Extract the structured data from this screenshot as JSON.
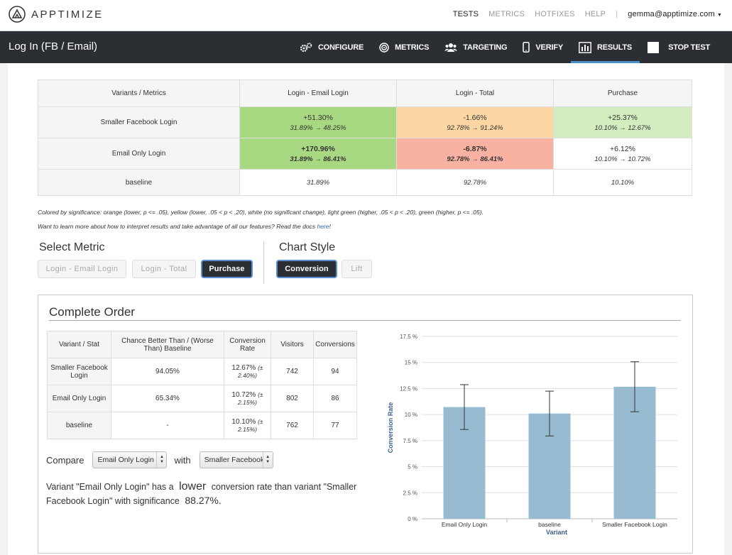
{
  "brand": {
    "name": "APPTIMIZE"
  },
  "topnav": {
    "tests": "TESTS",
    "metrics": "METRICS",
    "hotfixes": "HOTFIXES",
    "help": "HELP",
    "separator": "|",
    "user": "gemma@apptimize.com"
  },
  "experiment": {
    "title": "Log In (FB / Email)"
  },
  "tabs": [
    {
      "label": "CONFIGURE",
      "icon": "gears-icon"
    },
    {
      "label": "METRICS",
      "icon": "target-icon"
    },
    {
      "label": "TARGETING",
      "icon": "users-icon"
    },
    {
      "label": "VERIFY",
      "icon": "phone-icon"
    },
    {
      "label": "RESULTS",
      "icon": "bar-chart-icon",
      "active": true
    },
    {
      "label": "STOP TEST",
      "icon": "stop-icon"
    }
  ],
  "results_table": {
    "header": [
      "Variants / Metrics",
      "Login - Email Login",
      "Login - Total",
      "Purchase"
    ],
    "rows": [
      {
        "name": "Smaller Facebook Login",
        "cells": [
          {
            "pct": "+51.30%",
            "range": "31.89% → 48.25%",
            "color": "#a8d982"
          },
          {
            "pct": "-1.66%",
            "range": "92.78% → 91.24%",
            "color": "#fcd7a4"
          },
          {
            "pct": "+25.37%",
            "range": "10.10% → 12.67%",
            "color": "#d3ecc0"
          }
        ]
      },
      {
        "name": "Email Only Login",
        "cells": [
          {
            "pct": "+170.96%",
            "range": "31.89% → 86.41%",
            "color": "#a8d982"
          },
          {
            "pct": "-6.87%",
            "range": "92.78% → 86.41%",
            "color": "#f9b1a2"
          },
          {
            "pct": "+6.12%",
            "range": "10.10% → 10.72%",
            "color": "#ffffff"
          }
        ]
      },
      {
        "name": "baseline",
        "cells": [
          "31.89%",
          "92.78%",
          "10.10%"
        ]
      }
    ]
  },
  "notes": {
    "significance": "Colored by significance: orange (lower, p <= .05), yellow (lower, .05 < p < .20), white (no significant change), light green (higher, .05 < p < .20), green (higher, p <= .05).",
    "learn_more": "Want to learn more about how to interpret results and take advantage of all our features? Read the docs",
    "link": "here",
    "end": "!"
  },
  "select_metric": {
    "title": "Select Metric",
    "options": [
      "Login - Email Login",
      "Login - Total",
      "Purchase"
    ],
    "selected": "Purchase"
  },
  "chart_style": {
    "title": "Chart Style",
    "options": [
      "Conversion",
      "Lift"
    ],
    "selected": "Conversion"
  },
  "order": {
    "title": "Complete Order",
    "table": {
      "header": [
        "Variant / Stat",
        "Chance Better Than / (Worse Than) Baseline",
        "Conversion Rate",
        "Visitors",
        "Conversions"
      ],
      "rows": [
        {
          "name": "Smaller Facebook Login",
          "chance": "94.05%",
          "rate": "12.67%",
          "err": "(± 2.40%)",
          "visitors": "742",
          "conversions": "94"
        },
        {
          "name": "Email Only Login",
          "chance": "65.34%",
          "rate": "10.72%",
          "err": "(± 2.15%)",
          "visitors": "802",
          "conversions": "86"
        },
        {
          "name": "baseline",
          "chance": "-",
          "rate": "10.10%",
          "err": "(± 2.15%)",
          "visitors": "762",
          "conversions": "77"
        }
      ]
    },
    "compare": {
      "label": "Compare",
      "with": "with",
      "a": "Email Only Login",
      "b": "Smaller Facebook"
    },
    "significance": {
      "p1": "Variant \"Email Only Login\" has a",
      "direction": "lower",
      "p2": "conversion rate than variant \"Smaller Facebook Login\" with significance",
      "value": "88.27%."
    }
  },
  "chart_data": {
    "type": "bar",
    "categories": [
      "Email Only Login",
      "baseline",
      "Smaller Facebook Login"
    ],
    "values": [
      10.72,
      10.1,
      12.67
    ],
    "errors": [
      2.15,
      2.15,
      2.4
    ],
    "xlabel": "Variant",
    "ylabel": "Conversion Rate",
    "ylim": [
      0,
      17.5
    ],
    "yticks": [
      "0 %",
      "2.5 %",
      "5 %",
      "7.5 %",
      "10 %",
      "12.5 %",
      "15 %",
      "17.5 %"
    ],
    "grid": true,
    "color": "#97bcd1"
  }
}
